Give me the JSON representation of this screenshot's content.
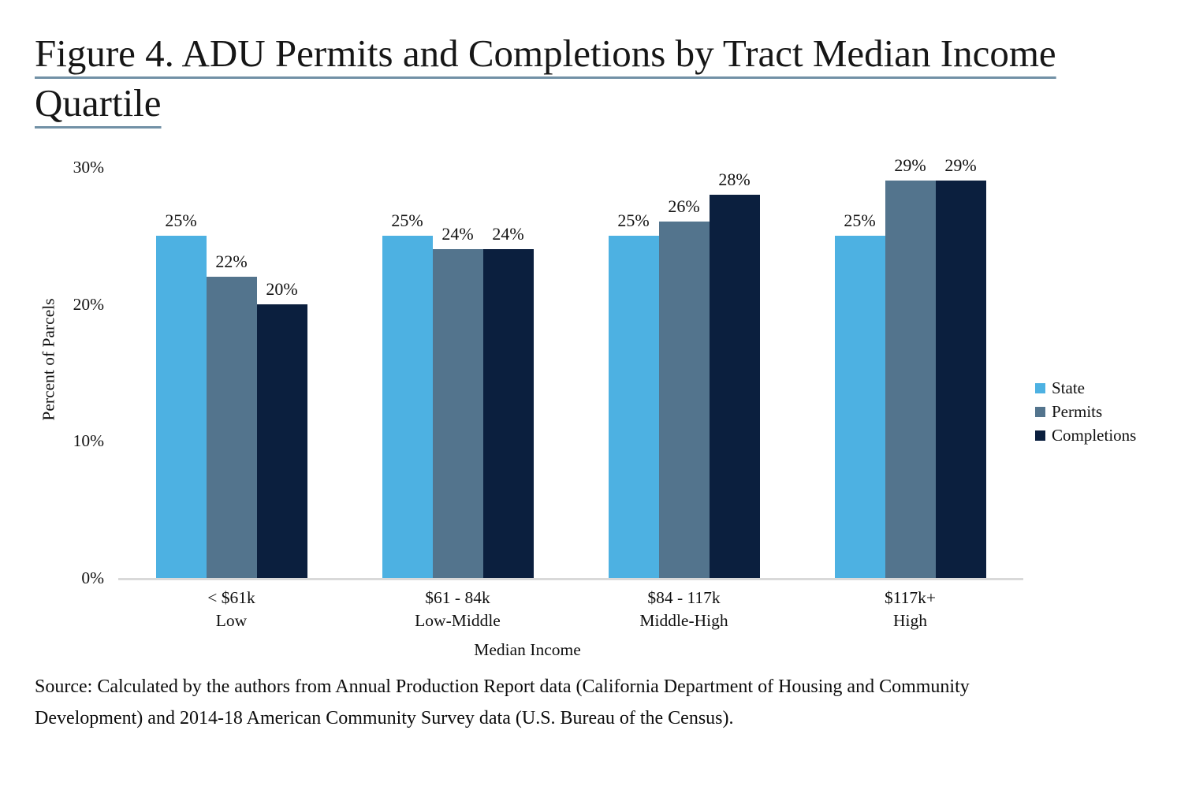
{
  "title": {
    "text": "Figure 4. ADU Permits and Completions by Tract Median Income Quartile",
    "underline_color": "#7291A6"
  },
  "chart_data": {
    "type": "bar",
    "title": "Figure 4. ADU Permits and Completions by Tract Median Income Quartile",
    "xlabel": "Median Income",
    "ylabel": "Percent of Parcels",
    "ylim": [
      0,
      30
    ],
    "yticks": [
      {
        "value": 0,
        "label": "0%"
      },
      {
        "value": 10,
        "label": "10%"
      },
      {
        "value": 20,
        "label": "20%"
      },
      {
        "value": 30,
        "label": "30%"
      }
    ],
    "categories": [
      {
        "income": "< $61k",
        "quartile": "Low"
      },
      {
        "income": "$61 - 84k",
        "quartile": "Low-Middle"
      },
      {
        "income": "$84 - 117k",
        "quartile": "Middle-High"
      },
      {
        "income": "$117k+",
        "quartile": "High"
      }
    ],
    "series": [
      {
        "name": "State",
        "color": "#4DB1E2",
        "values": [
          25,
          25,
          25,
          25
        ]
      },
      {
        "name": "Permits",
        "color": "#53748D",
        "values": [
          22,
          24,
          26,
          29
        ]
      },
      {
        "name": "Completions",
        "color": "#0B1F3E",
        "values": [
          20,
          24,
          28,
          29
        ]
      }
    ],
    "value_label_suffix": "%",
    "legend_position": "right",
    "grid": false,
    "axis_line_color": "#D9D9D9"
  },
  "source": {
    "lines": [
      "Source: Calculated by the authors from Annual Production Report data (California Department of Housing and Community",
      "Development) and 2014-18 American Community Survey data (U.S. Bureau of the Census)."
    ]
  }
}
